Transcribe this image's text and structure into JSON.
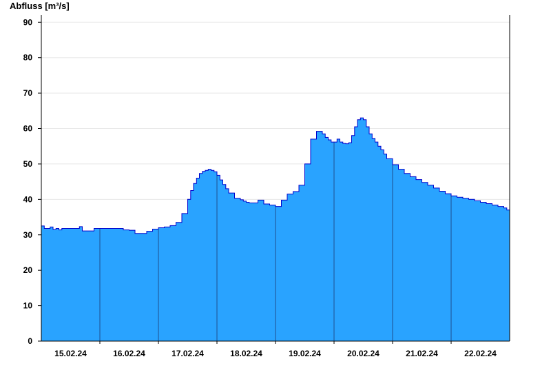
{
  "chart_data": {
    "type": "area",
    "title": "",
    "ylabel": "Abfluss [m³/s]",
    "xlabel": "",
    "ylim": [
      0,
      92
    ],
    "yticks": [
      0,
      10,
      20,
      30,
      40,
      50,
      60,
      70,
      80,
      90
    ],
    "x_range": [
      "14.02.24 08:00",
      "22.02.24 08:00"
    ],
    "x_ticks": [
      {
        "label": "15.02.24",
        "day": 0.5
      },
      {
        "label": "16.02.24",
        "day": 1.5
      },
      {
        "label": "17.02.24",
        "day": 2.5
      },
      {
        "label": "18.02.24",
        "day": 3.5
      },
      {
        "label": "19.02.24",
        "day": 4.5
      },
      {
        "label": "20.02.24",
        "day": 5.5
      },
      {
        "label": "21.02.24",
        "day": 6.5
      },
      {
        "label": "22.02.24",
        "day": 7.5
      }
    ],
    "gridlines": "horizontal",
    "colors": {
      "fill": "#29A3FF",
      "line": "#0000CC",
      "grid": "#E8E8E8",
      "day_divider": "#1F4F8F"
    },
    "series": [
      {
        "days": [
          0,
          0.05,
          0.1,
          0.15,
          0.2,
          0.25,
          0.3,
          0.35,
          0.4,
          0.5,
          0.6,
          0.65,
          0.7,
          0.8,
          0.9,
          1.0,
          1.1,
          1.2,
          1.3,
          1.4,
          1.5,
          1.6,
          1.7,
          1.8,
          1.9,
          2.0,
          2.1,
          2.2,
          2.3,
          2.4,
          2.5,
          2.55,
          2.6,
          2.65,
          2.7,
          2.75,
          2.8,
          2.85,
          2.9,
          2.95,
          3.0,
          3.05,
          3.1,
          3.15,
          3.2,
          3.3,
          3.4,
          3.45,
          3.5,
          3.55,
          3.6,
          3.7,
          3.8,
          3.9,
          4.0,
          4.1,
          4.2,
          4.3,
          4.4,
          4.5,
          4.6,
          4.7,
          4.8,
          4.85,
          4.9,
          4.95,
          5.0,
          5.05,
          5.1,
          5.15,
          5.2,
          5.25,
          5.3,
          5.35,
          5.4,
          5.45,
          5.5,
          5.55,
          5.6,
          5.65,
          5.7,
          5.75,
          5.8,
          5.85,
          5.9,
          6.0,
          6.1,
          6.2,
          6.3,
          6.4,
          6.5,
          6.6,
          6.7,
          6.8,
          6.9,
          7.0,
          7.1,
          7.2,
          7.3,
          7.4,
          7.5,
          7.6,
          7.7,
          7.8,
          7.9,
          7.95,
          8.0
        ],
        "values": [
          32.5,
          31.8,
          31.8,
          32.2,
          31.5,
          31.8,
          31.4,
          31.8,
          31.8,
          31.8,
          31.8,
          32.3,
          31.1,
          31.1,
          31.8,
          31.8,
          31.8,
          31.8,
          31.8,
          31.4,
          31.3,
          30.4,
          30.4,
          31.0,
          31.6,
          32.0,
          32.2,
          32.6,
          33.5,
          36.0,
          40.0,
          42.5,
          44.5,
          46.0,
          47.3,
          47.9,
          48.2,
          48.5,
          48.2,
          47.8,
          46.8,
          45.5,
          44.2,
          43.0,
          41.8,
          40.3,
          39.9,
          39.5,
          39.2,
          39.0,
          39.0,
          39.8,
          38.7,
          38.4,
          38.0,
          39.8,
          41.5,
          42.2,
          44.0,
          50.0,
          57.0,
          59.2,
          58.5,
          57.5,
          56.8,
          56.2,
          56.2,
          57.0,
          56.2,
          55.8,
          55.7,
          56.0,
          58.0,
          60.5,
          62.5,
          63.0,
          62.5,
          60.5,
          58.5,
          57.2,
          56.2,
          55.0,
          54.0,
          52.8,
          51.5,
          49.8,
          48.5,
          47.3,
          46.4,
          45.6,
          44.8,
          44.0,
          43.2,
          42.3,
          41.6,
          41.0,
          40.6,
          40.3,
          40.0,
          39.6,
          39.2,
          38.8,
          38.4,
          38.0,
          37.6,
          37.0,
          36.6
        ]
      }
    ]
  }
}
